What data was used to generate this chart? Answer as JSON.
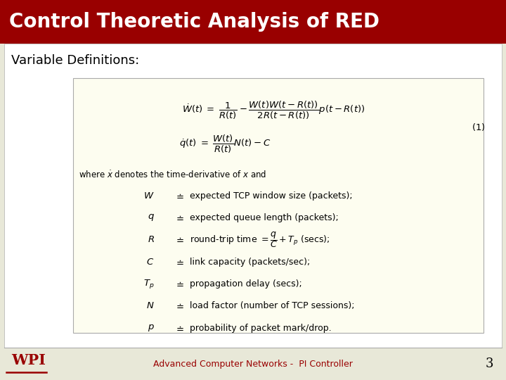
{
  "title": "Control Theoretic Analysis of RED",
  "title_bg_color": "#990000",
  "title_text_color": "#ffffff",
  "subtitle": "Variable Definitions:",
  "subtitle_color": "#000000",
  "footer_text": "Advanced Computer Networks -  PI Controller",
  "footer_number": "3",
  "footer_color": "#990000",
  "slide_bg": "#e8e8d8"
}
